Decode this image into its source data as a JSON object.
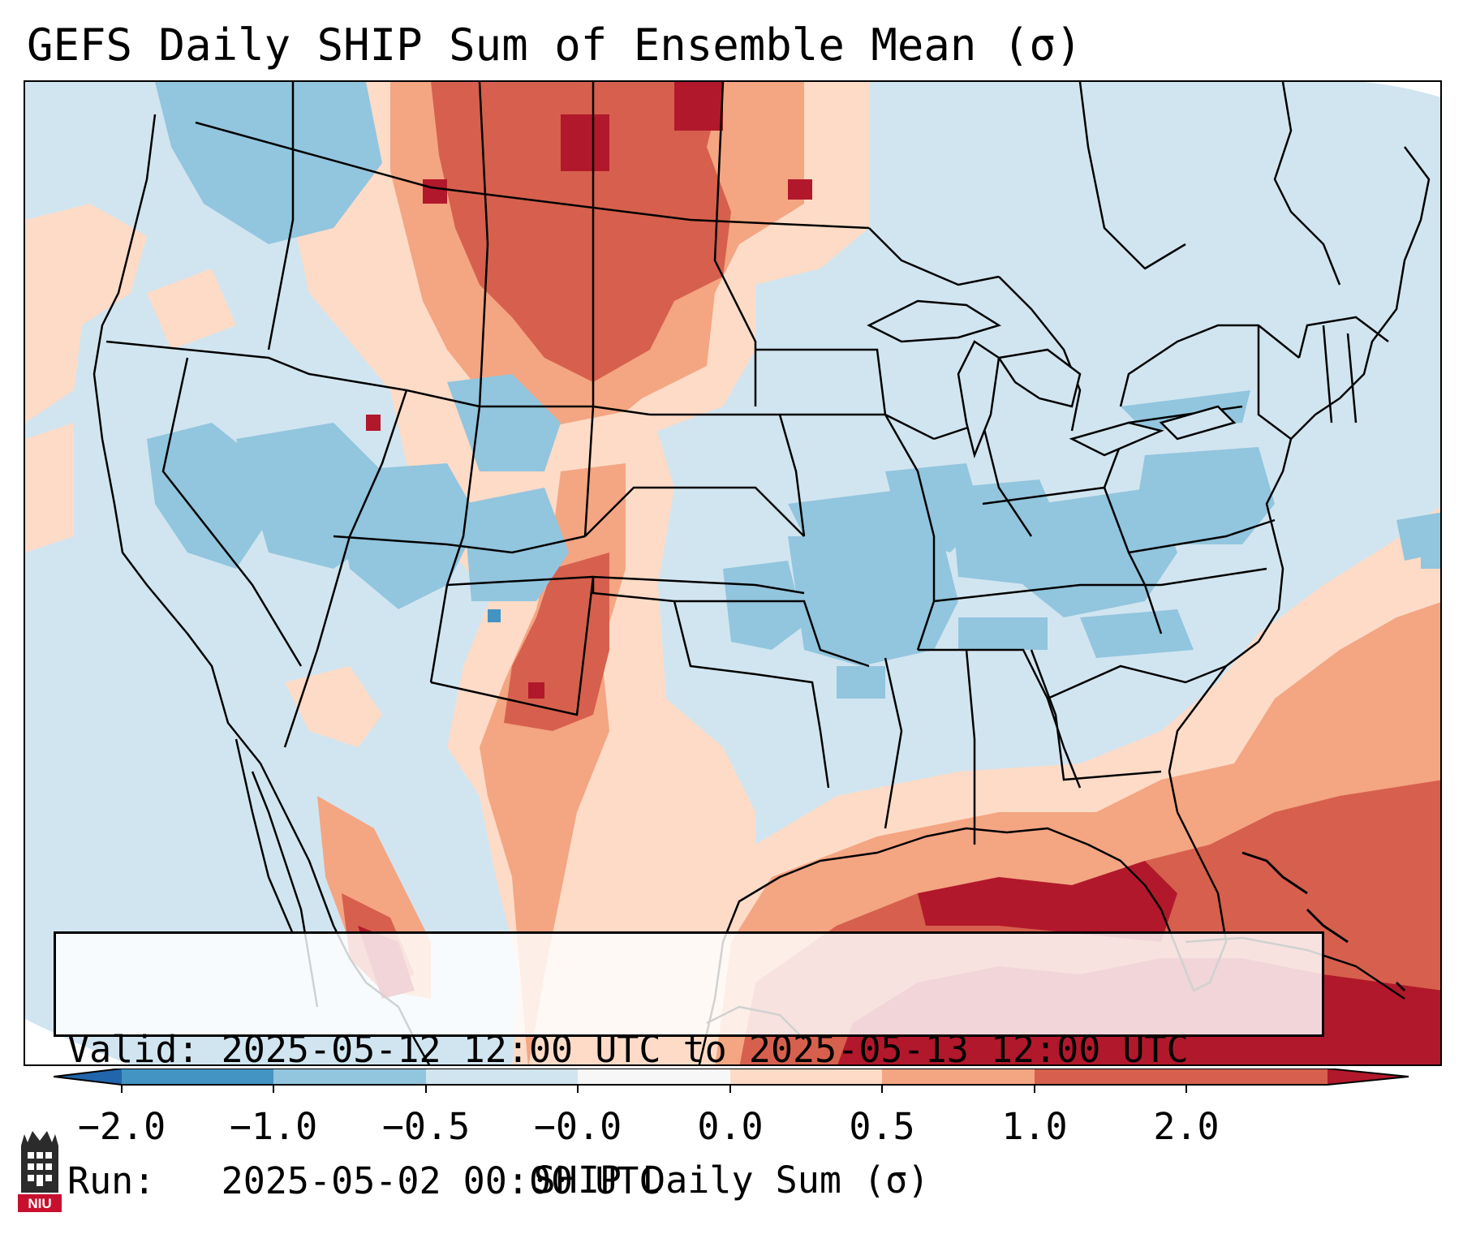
{
  "title": "GEFS Daily SHIP Sum of Ensemble Mean (σ)",
  "info": {
    "valid_line": "Valid: 2025-05-12 12:00 UTC to 2025-05-13 12:00 UTC",
    "run_line": "Run:   2025-05-02 00:00 UTC"
  },
  "colorbar": {
    "label": "SHIP Daily Sum (σ)",
    "tick_labels": [
      "−2.0",
      "−1.0",
      "−0.5",
      "−0.0",
      "0.0",
      "0.5",
      "1.0",
      "2.0"
    ],
    "bins": [
      {
        "range": "< -2.0",
        "color": "#2166ac"
      },
      {
        "range": "-2.0 to -1.0",
        "color": "#4393c3"
      },
      {
        "range": "-1.0 to -0.5",
        "color": "#92c5de"
      },
      {
        "range": "-0.5 to -0.0",
        "color": "#d1e5f0"
      },
      {
        "range": "-0.0 to 0.0",
        "color": "#f7f7f7"
      },
      {
        "range": "0.0 to 0.5",
        "color": "#fddbc7"
      },
      {
        "range": "0.5 to 1.0",
        "color": "#f4a582"
      },
      {
        "range": "1.0 to 2.0",
        "color": "#d6604d"
      },
      {
        "range": "> 2.0",
        "color": "#b2182b"
      }
    ]
  },
  "map": {
    "region": "Contiguous United States",
    "regions_depicted": [
      {
        "area": "Montana / Wyoming / western Dakotas",
        "level": "0.5 to 2.0"
      },
      {
        "area": "Eastern Colorado / New Mexico / western Texas",
        "level": "0.5 to 2.0"
      },
      {
        "area": "Gulf of Mexico",
        "level": "1.0 to 2.0+"
      },
      {
        "area": "Western Atlantic / Caribbean",
        "level": "1.0 to 2.0+"
      },
      {
        "area": "Central and Eastern US (Missouri, Ohio Valley, Virginia)",
        "level": "-1.0 to -0.5"
      },
      {
        "area": "Great Basin / Utah / western Colorado",
        "level": "-1.0 to -0.5"
      }
    ]
  },
  "logo": {
    "text": "NIU",
    "color": "#c8102e"
  }
}
